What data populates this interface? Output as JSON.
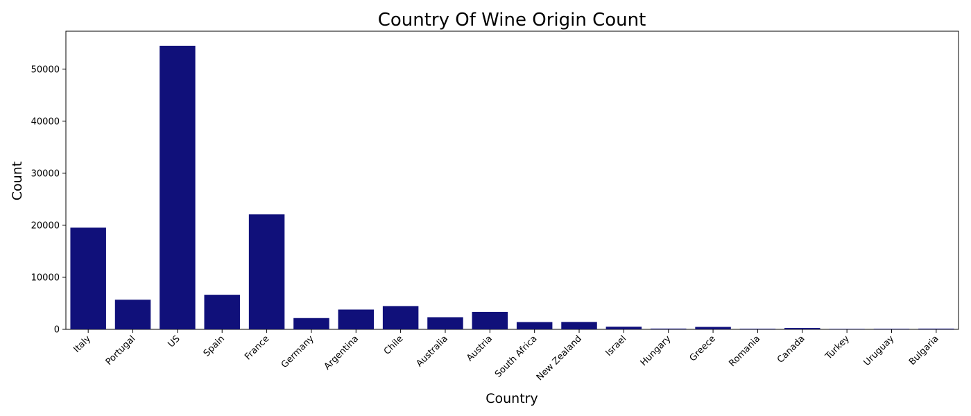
{
  "chart_data": {
    "type": "bar",
    "title": "Country Of Wine Origin Count",
    "xlabel": "Country",
    "ylabel": "Count",
    "categories": [
      "Italy",
      "Portugal",
      "US",
      "Spain",
      "France",
      "Germany",
      "Argentina",
      "Chile",
      "Australia",
      "Austria",
      "South Africa",
      "New Zealand",
      "Israel",
      "Hungary",
      "Greece",
      "Romania",
      "Canada",
      "Turkey",
      "Uruguay",
      "Bulgaria"
    ],
    "values": [
      19540,
      5691,
      54504,
      6645,
      22093,
      2165,
      3800,
      4472,
      2329,
      3345,
      1401,
      1419,
      505,
      146,
      466,
      120,
      257,
      90,
      109,
      141
    ],
    "ylim": [
      0,
      57300
    ],
    "yticks": [
      0,
      10000,
      20000,
      30000,
      40000,
      50000
    ],
    "bar_color": "#10107a",
    "grid": false,
    "legend": "none"
  }
}
